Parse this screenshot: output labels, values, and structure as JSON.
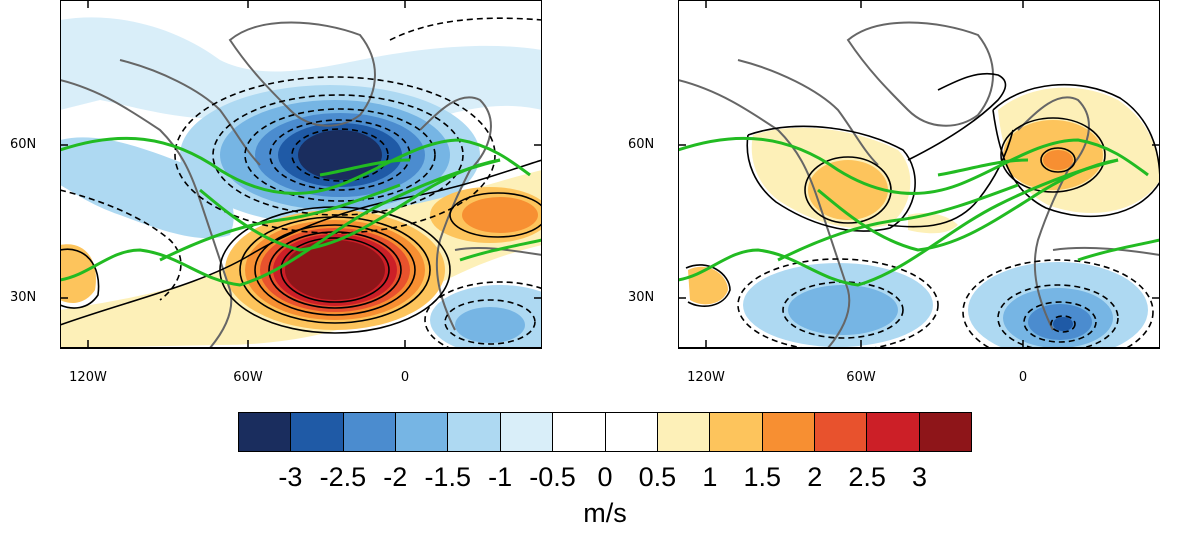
{
  "panels": [
    {
      "name": "left-map",
      "lat_labels": [
        "60N",
        "30N"
      ],
      "lon_labels": [
        "120W",
        "60W",
        "0"
      ]
    },
    {
      "name": "right-map",
      "lat_labels": [
        "60N",
        "30N"
      ],
      "lon_labels": [
        "120W",
        "60W",
        "0"
      ]
    }
  ],
  "colorbar": {
    "tick_labels": [
      "-3",
      "-2.5",
      "-2",
      "-1.5",
      "-1",
      "-0.5",
      "0",
      "0.5",
      "1",
      "1.5",
      "2",
      "2.5",
      "3"
    ],
    "colors": [
      "#1a2d5e",
      "#1f5aa6",
      "#4b8ccf",
      "#76b5e4",
      "#aed9f2",
      "#d9eef9",
      "#ffffff",
      "#ffffff",
      "#fdf0b8",
      "#fdc45c",
      "#f78f32",
      "#e8522d",
      "#cc1f27",
      "#8e1519"
    ],
    "units": "m/s"
  },
  "colors": {
    "jet_contour": "#22bb22",
    "coastline": "#666666",
    "contour_line": "#000000"
  }
}
